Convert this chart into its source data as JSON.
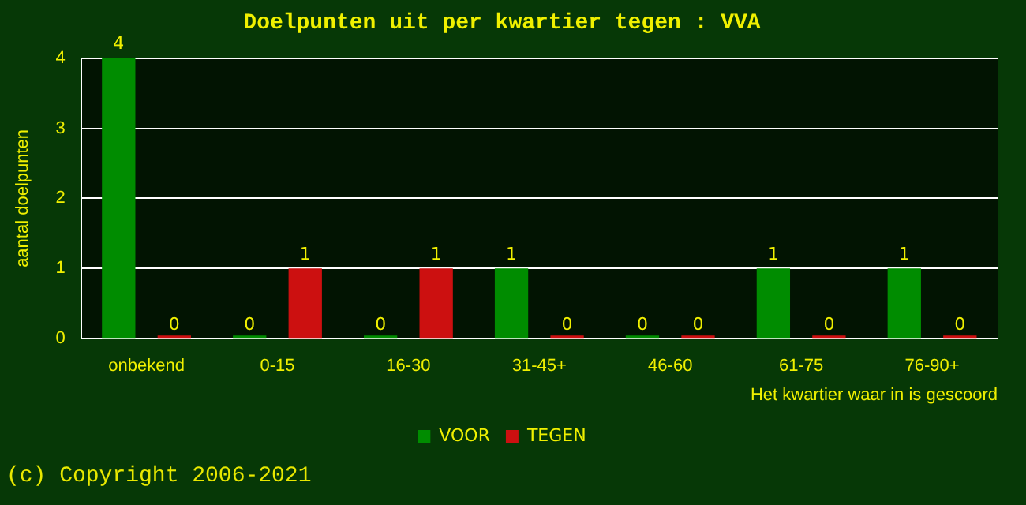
{
  "chart_data": {
    "type": "bar",
    "title": "Doelpunten uit per kwartier tegen : VVA",
    "xlabel": "Het kwartier waar in is gescoord",
    "ylabel": "aantal doelpunten",
    "categories": [
      "onbekend",
      "0-15",
      "16-30",
      "31-45+",
      "46-60",
      "61-75",
      "76-90+"
    ],
    "series": [
      {
        "name": "VOOR",
        "color": "#008c00",
        "values": [
          4,
          0,
          0,
          1,
          0,
          1,
          1
        ]
      },
      {
        "name": "TEGEN",
        "color": "#cc1010",
        "values": [
          0,
          1,
          1,
          0,
          0,
          0,
          0
        ]
      }
    ],
    "ylim": [
      0,
      4
    ],
    "yticks": [
      0,
      1,
      2,
      3,
      4
    ],
    "grid": "y",
    "legend": "bottom",
    "data_labels": true,
    "annotations": [
      "(c) Copyright 2006-2021"
    ]
  }
}
